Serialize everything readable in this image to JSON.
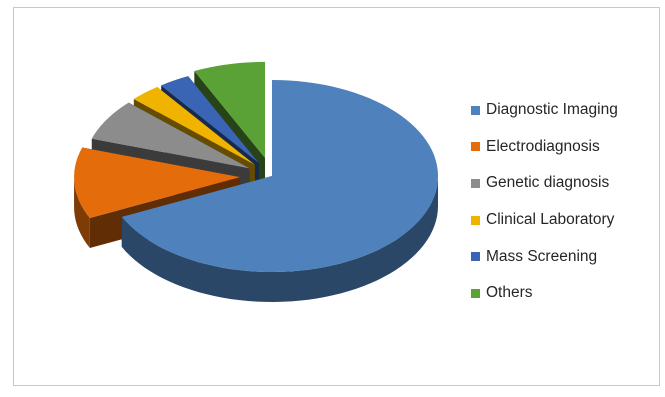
{
  "chart_data": {
    "type": "pie",
    "title": "",
    "exploded": true,
    "three_d": true,
    "legend_position": "right",
    "slices": [
      {
        "name": "Diagnostic Imaging",
        "value": 68,
        "color": "#4f81bd"
      },
      {
        "name": "Electrodiagnosis",
        "value": 12,
        "color": "#e46c0a"
      },
      {
        "name": "Genetic diagnosis",
        "value": 7,
        "color": "#8c8c8c"
      },
      {
        "name": "Clinical Laboratory",
        "value": 3,
        "color": "#f0b400"
      },
      {
        "name": "Mass Screening",
        "value": 3,
        "color": "#3a64b4"
      },
      {
        "name": "Others",
        "value": 7,
        "color": "#5aa136"
      }
    ]
  }
}
